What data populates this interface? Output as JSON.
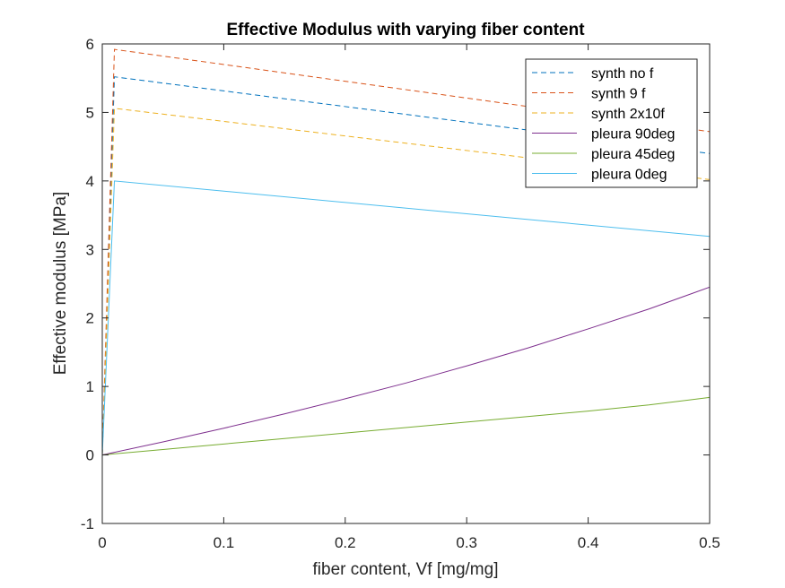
{
  "chart_data": {
    "type": "line",
    "title": "Effective Modulus with varying fiber content",
    "xlabel": "fiber content, Vf [mg/mg]",
    "ylabel": "Effective modulus [MPa]",
    "xlim": [
      0,
      0.5
    ],
    "ylim": [
      -1,
      6
    ],
    "xticks": [
      0,
      0.1,
      0.2,
      0.3,
      0.4,
      0.5
    ],
    "xtick_labels": [
      "0",
      "0.1",
      "0.2",
      "0.3",
      "0.4",
      "0.5"
    ],
    "yticks": [
      -1,
      0,
      1,
      2,
      3,
      4,
      5,
      6
    ],
    "ytick_labels": [
      "-1",
      "0",
      "1",
      "2",
      "3",
      "4",
      "5",
      "6"
    ],
    "grid": false,
    "legend_position": "top-right",
    "series": [
      {
        "name": "synth no f",
        "color": "#0072BD",
        "dash": "dashed",
        "x": [
          0,
          0.01,
          0.5
        ],
        "y": [
          0,
          5.52,
          4.4
        ]
      },
      {
        "name": "synth 9 f",
        "color": "#D95319",
        "dash": "dashed",
        "x": [
          0,
          0.01,
          0.5
        ],
        "y": [
          0,
          5.92,
          4.72
        ]
      },
      {
        "name": "synth 2x10f",
        "color": "#EDB120",
        "dash": "dashed",
        "x": [
          0,
          0.01,
          0.5
        ],
        "y": [
          0,
          5.06,
          4.02
        ]
      },
      {
        "name": "pleura 90deg",
        "color": "#7E2F8E",
        "dash": "solid",
        "x": [
          0,
          0.05,
          0.1,
          0.15,
          0.2,
          0.25,
          0.3,
          0.35,
          0.4,
          0.45,
          0.5
        ],
        "y": [
          0,
          0.19,
          0.39,
          0.6,
          0.82,
          1.05,
          1.3,
          1.56,
          1.84,
          2.13,
          2.45
        ]
      },
      {
        "name": "pleura 45deg",
        "color": "#77AC30",
        "dash": "solid",
        "x": [
          0,
          0.05,
          0.1,
          0.15,
          0.2,
          0.25,
          0.3,
          0.35,
          0.4,
          0.45,
          0.5
        ],
        "y": [
          0,
          0.08,
          0.16,
          0.24,
          0.32,
          0.4,
          0.48,
          0.56,
          0.64,
          0.73,
          0.84
        ]
      },
      {
        "name": "pleura 0deg",
        "color": "#4DBEEE",
        "dash": "solid",
        "x": [
          0,
          0.01,
          0.5
        ],
        "y": [
          0,
          4.0,
          3.19
        ]
      }
    ]
  }
}
